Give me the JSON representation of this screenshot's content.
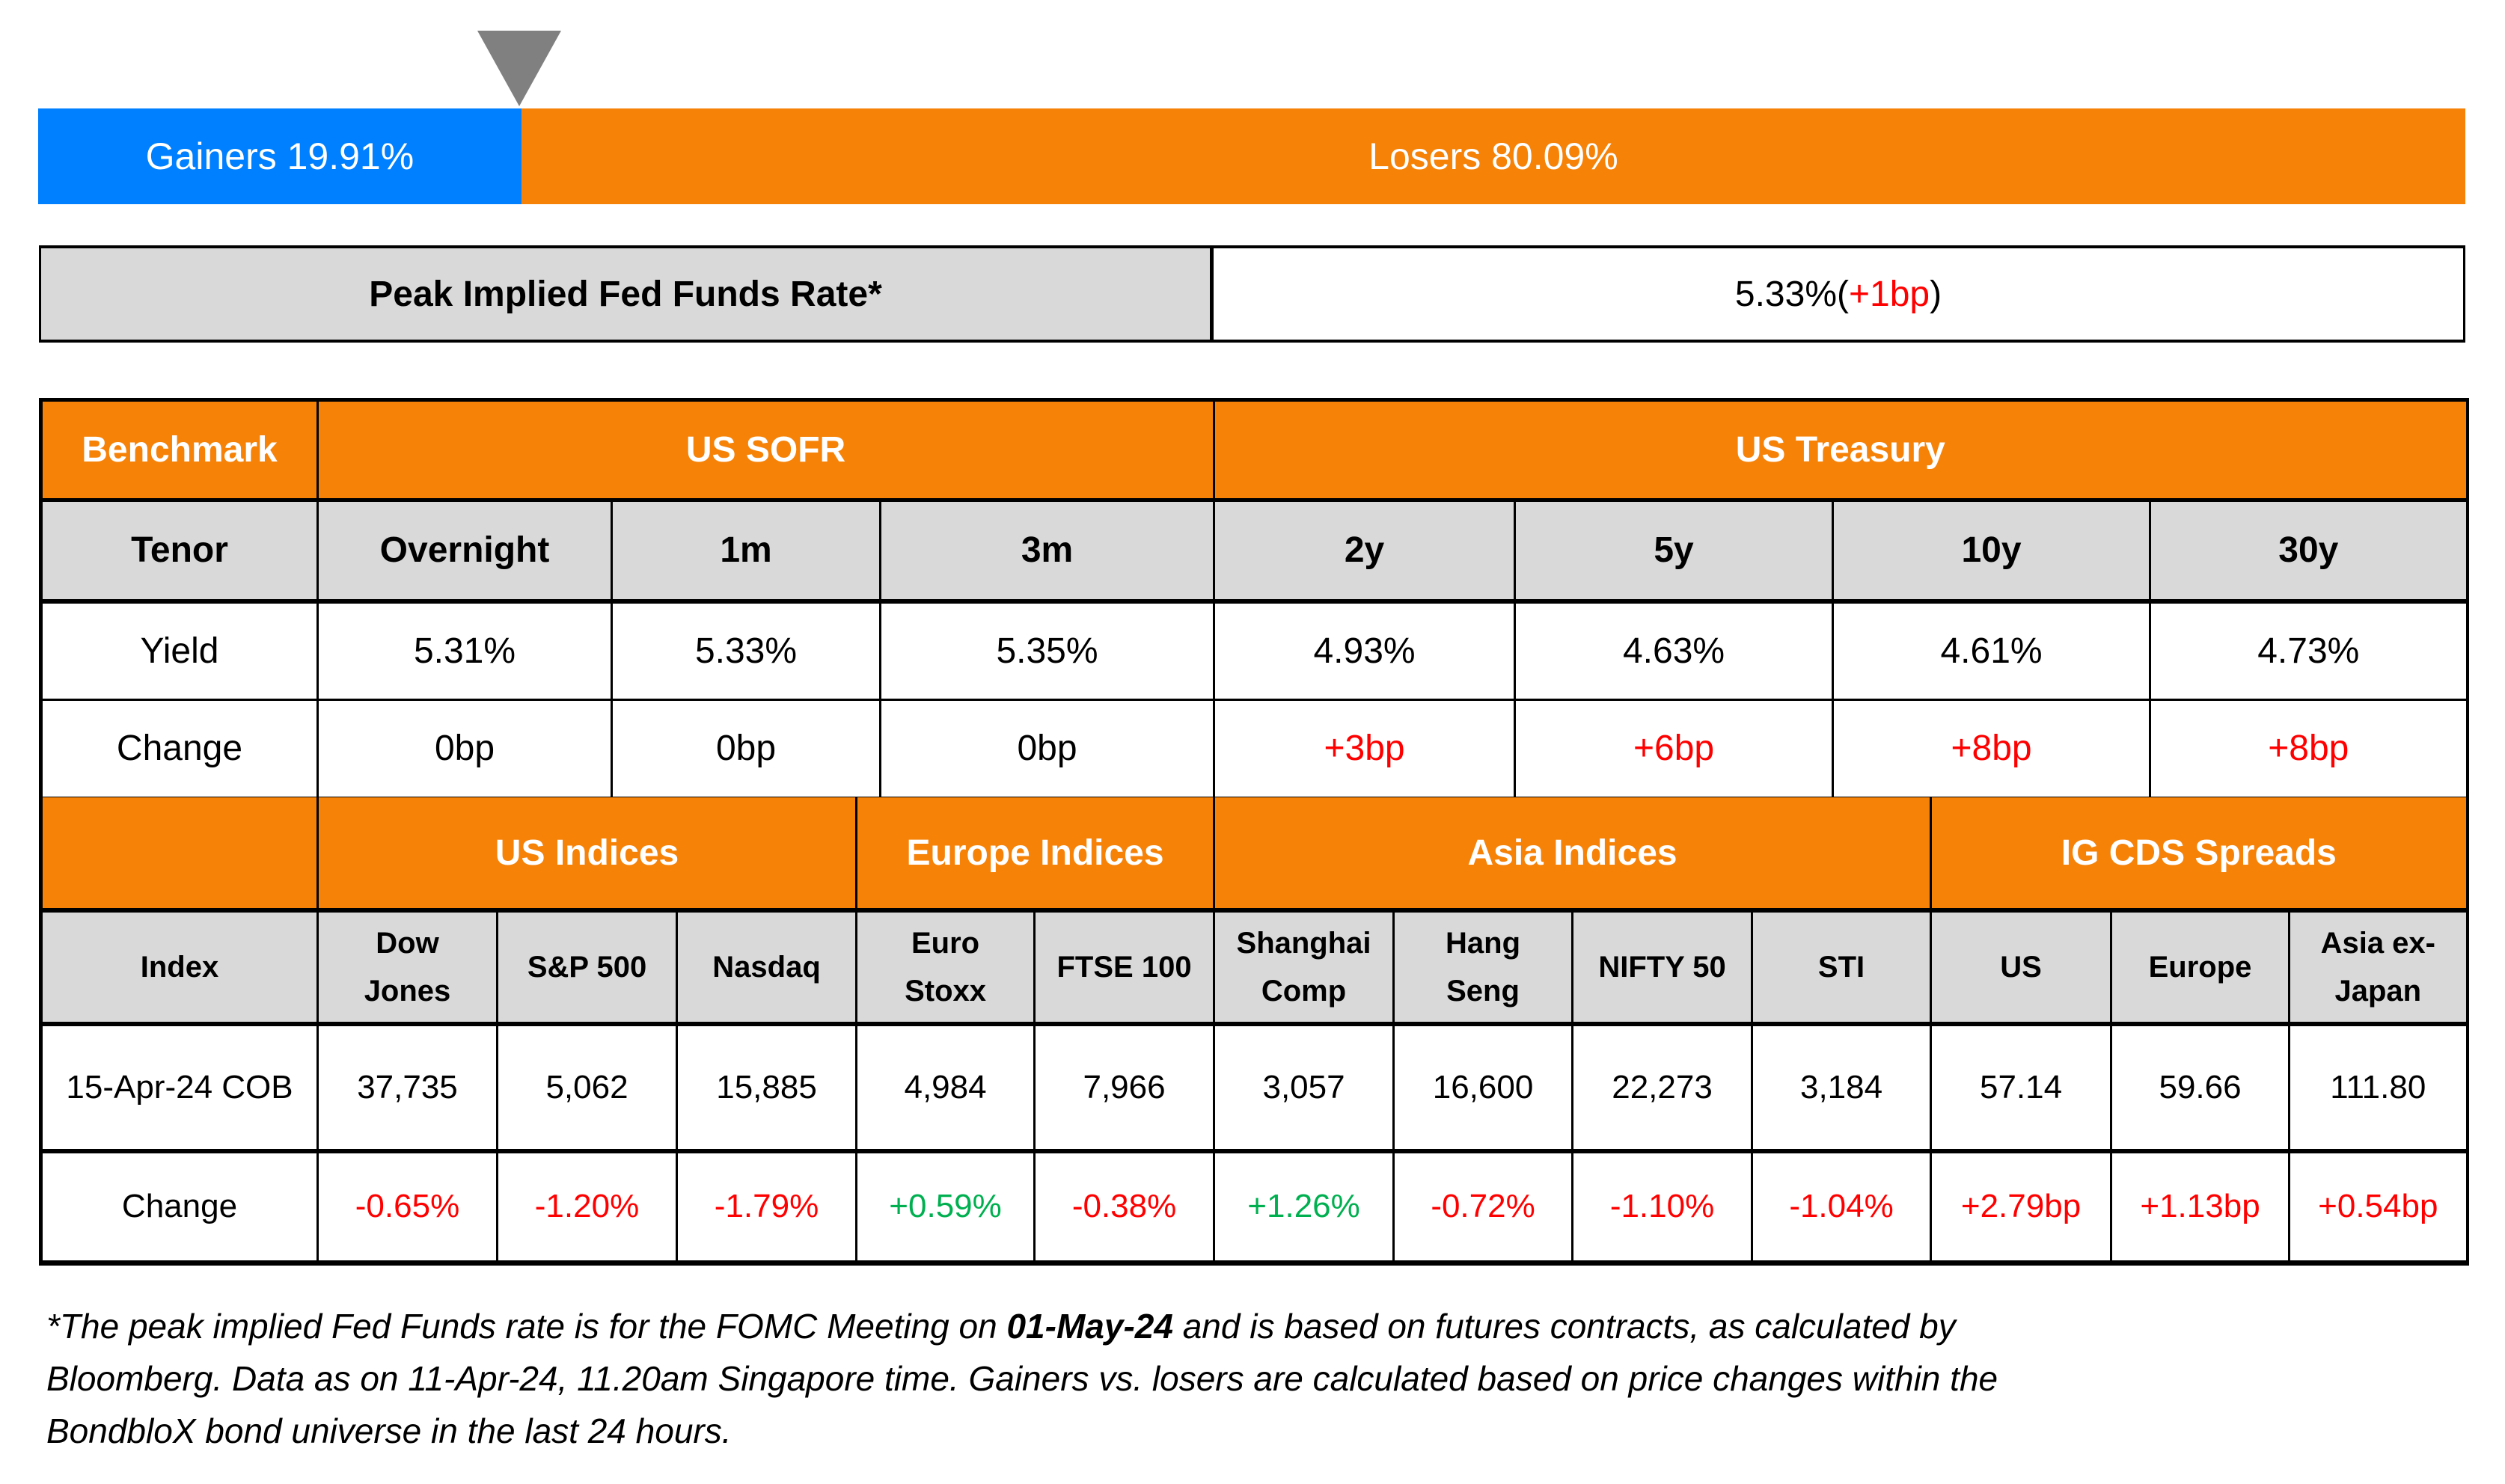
{
  "colors": {
    "gainers": "#0080FF",
    "losers": "#F68208",
    "header_orange": "#F68208",
    "header_grey": "#D9D9D9",
    "marker": "#808080",
    "negative_red": "#FF0000",
    "positive_green": "#00B050"
  },
  "breadth": {
    "gainers_label": "Gainers 19.91%",
    "losers_label": "Losers 80.09%",
    "gainers_pct": 19.91,
    "losers_pct": 80.09,
    "marker_icon": "triangle-down-icon"
  },
  "fed": {
    "label": "Peak Implied Fed Funds Rate*",
    "value": "5.33%",
    "paren_open": " (",
    "change": "+1bp",
    "paren_close": ")"
  },
  "rates": {
    "benchmark_label": "Benchmark",
    "groups": [
      "US SOFR",
      "US Treasury"
    ],
    "tenor_label": "Tenor",
    "tenors": [
      "Overnight",
      "1m",
      "3m",
      "2y",
      "5y",
      "10y",
      "30y"
    ],
    "yield_label": "Yield",
    "yields": [
      "5.31%",
      "5.33%",
      "5.35%",
      "4.93%",
      "4.63%",
      "4.61%",
      "4.73%"
    ],
    "change_label": "Change",
    "changes": [
      "0bp",
      "0bp",
      "0bp",
      "+3bp",
      "+6bp",
      "+8bp",
      "+8bp"
    ]
  },
  "indices": {
    "groups": [
      "US Indices",
      "Europe Indices",
      "Asia Indices",
      "IG CDS Spreads"
    ],
    "index_label": "Index",
    "names": [
      [
        "Dow",
        "Jones"
      ],
      [
        "S&P 500"
      ],
      [
        "Nasdaq"
      ],
      [
        "Euro",
        "Stoxx"
      ],
      [
        "FTSE 100"
      ],
      [
        "Shanghai",
        "Comp"
      ],
      [
        "Hang",
        "Seng"
      ],
      [
        "NIFTY 50"
      ],
      [
        "STI"
      ],
      [
        "US"
      ],
      [
        "Europe"
      ],
      [
        "Asia ex-",
        "Japan"
      ]
    ],
    "date_label": "15-Apr-24 COB",
    "levels": [
      "37,735",
      "5,062",
      "15,885",
      "4,984",
      "7,966",
      "3,057",
      "16,600",
      "22,273",
      "3,184",
      "57.14",
      "59.66",
      "111.80"
    ],
    "change_label": "Change",
    "changes": [
      "-0.65%",
      "-1.20%",
      "-1.79%",
      "+0.59%",
      "-0.38%",
      "+1.26%",
      "-0.72%",
      "-1.10%",
      "-1.04%",
      "+2.79bp",
      "+1.13bp",
      "+0.54bp"
    ]
  },
  "footnote": {
    "line1_pre": "*The peak implied Fed Funds rate is for the FOMC Meeting on ",
    "line1_bold": "01-May-24",
    "line1_post": " and is based on futures contracts, as calculated by",
    "line2": "Bloomberg. Data as on 11-Apr-24, 11.20am Singapore time. Gainers vs. losers are calculated based on price changes within the",
    "line3": "BondbloX bond universe in the last 24 hours."
  }
}
